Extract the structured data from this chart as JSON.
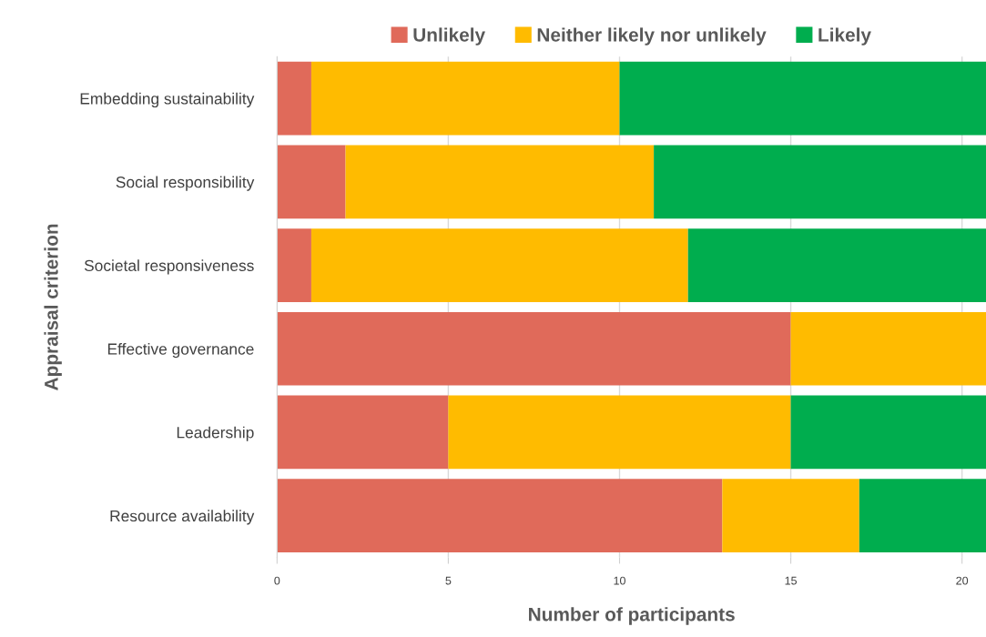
{
  "chart_data": {
    "type": "bar",
    "orientation": "horizontal",
    "stacked": true,
    "categories": [
      "Embedding sustainability",
      "Social responsibility",
      "Societal responsiveness",
      "Effective governance",
      "Leadership",
      "Resource availability"
    ],
    "series": [
      {
        "name": "Unlikely",
        "color": "#e06a5a",
        "values": [
          1,
          2,
          1,
          15,
          5,
          13
        ]
      },
      {
        "name": "Neither likely nor unlikely",
        "color": "#ffbb00",
        "values": [
          9,
          9,
          11,
          5.7,
          10,
          4
        ]
      },
      {
        "name": "Likely",
        "color": "#00ad4e",
        "values": [
          10.7,
          9.7,
          8.7,
          null,
          5.7,
          3.7
        ]
      }
    ],
    "xlim": [
      0,
      20.7
    ],
    "xticks": [
      0,
      5,
      10,
      15,
      20
    ],
    "xlabel": "Number of participants",
    "ylabel": "Appraisal criterion",
    "grid": "x",
    "legend": "top"
  }
}
